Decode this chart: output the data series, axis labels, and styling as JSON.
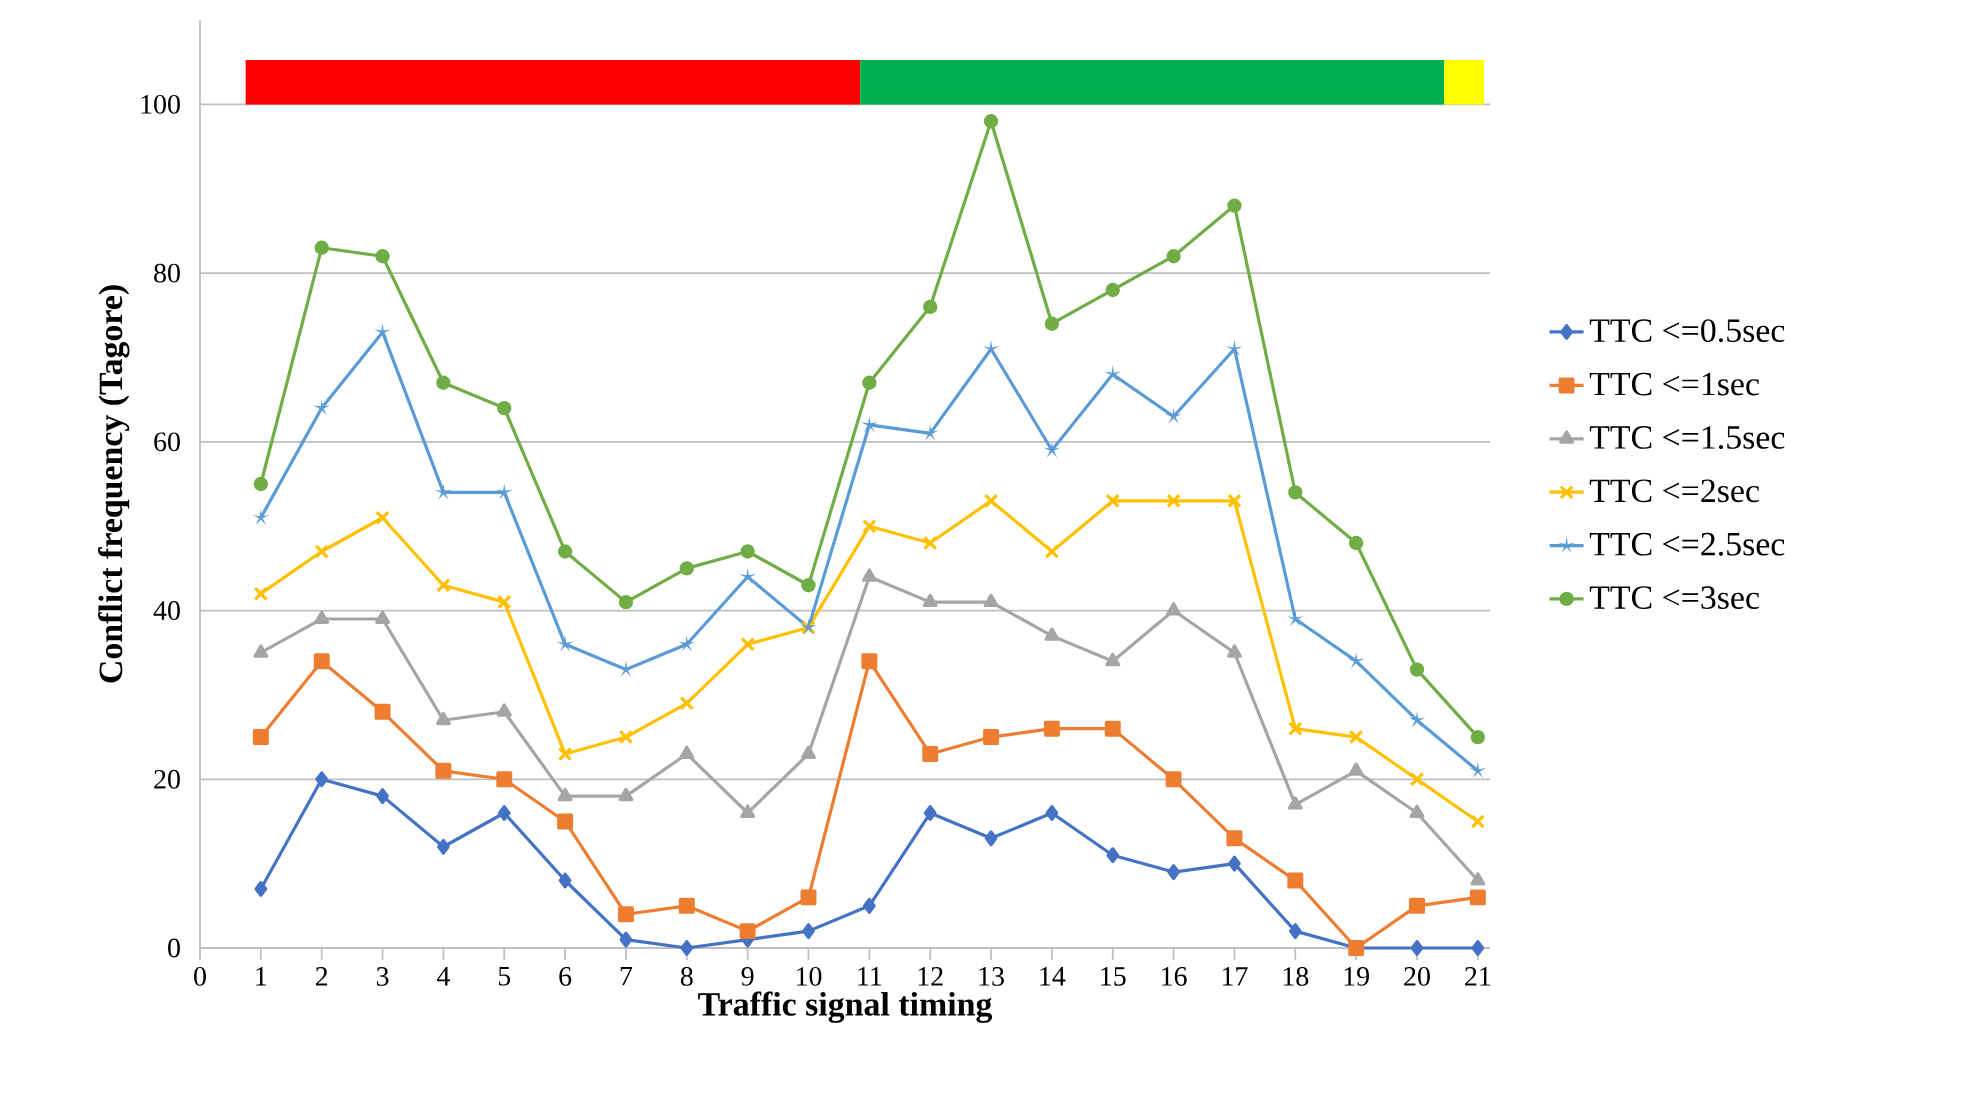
{
  "chart_data": {
    "type": "line",
    "xlabel": "Traffic signal timing",
    "ylabel": "Conflict frequency (Tagore)",
    "x": [
      1,
      2,
      3,
      4,
      5,
      6,
      7,
      8,
      9,
      10,
      11,
      12,
      13,
      14,
      15,
      16,
      17,
      18,
      19,
      20,
      21
    ],
    "xlim": [
      0,
      21.2
    ],
    "xticks": [
      0,
      1,
      2,
      3,
      4,
      5,
      6,
      7,
      8,
      9,
      10,
      11,
      12,
      13,
      14,
      15,
      16,
      17,
      18,
      19,
      20,
      21
    ],
    "ylim": [
      0,
      110
    ],
    "yticks": [
      0,
      20,
      40,
      60,
      80,
      100
    ],
    "grid": "y",
    "legend": "right",
    "line_style": "solid",
    "bands": [
      {
        "axis": "x",
        "from": 0.75,
        "to": 10.85,
        "color": "#ff0000"
      },
      {
        "axis": "x",
        "from": 10.85,
        "to": 20.45,
        "color": "#00b050"
      },
      {
        "axis": "x",
        "from": 20.45,
        "to": 21.1,
        "color": "#ffff00"
      }
    ],
    "series": [
      {
        "name": "TTC <=0.5sec",
        "color": "#4472c4",
        "marker": "diamond",
        "values": [
          7,
          20,
          18,
          12,
          16,
          8,
          1,
          0,
          1,
          2,
          5,
          16,
          13,
          16,
          11,
          9,
          10,
          2,
          0,
          0,
          0
        ]
      },
      {
        "name": "TTC <=1sec",
        "color": "#ed7d31",
        "marker": "square",
        "values": [
          25,
          34,
          28,
          21,
          20,
          15,
          4,
          5,
          2,
          6,
          34,
          23,
          25,
          26,
          26,
          20,
          13,
          8,
          0,
          5,
          6
        ]
      },
      {
        "name": "TTC <=1.5sec",
        "color": "#a5a5a5",
        "marker": "triangle",
        "values": [
          35,
          39,
          39,
          27,
          28,
          18,
          18,
          23,
          16,
          23,
          44,
          41,
          41,
          37,
          34,
          40,
          35,
          17,
          21,
          16,
          8
        ]
      },
      {
        "name": "TTC <=2sec",
        "color": "#ffc000",
        "marker": "cross",
        "values": [
          42,
          47,
          51,
          43,
          41,
          23,
          25,
          29,
          36,
          38,
          50,
          48,
          53,
          47,
          53,
          53,
          53,
          26,
          25,
          20,
          15
        ]
      },
      {
        "name": "TTC <=2.5sec",
        "color": "#5b9bd5",
        "marker": "star",
        "values": [
          51,
          64,
          73,
          54,
          54,
          36,
          33,
          36,
          44,
          38,
          62,
          61,
          71,
          59,
          68,
          63,
          71,
          39,
          34,
          27,
          21
        ]
      },
      {
        "name": "TTC <=3sec",
        "color": "#70ad47",
        "marker": "circle",
        "values": [
          55,
          83,
          82,
          67,
          64,
          47,
          41,
          45,
          47,
          43,
          67,
          76,
          98,
          74,
          78,
          82,
          88,
          54,
          48,
          33,
          25
        ]
      }
    ]
  }
}
